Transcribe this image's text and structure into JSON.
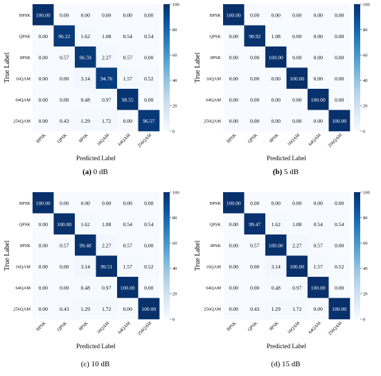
{
  "chart_data": [
    {
      "type": "heatmap",
      "caption_tag": "(a)",
      "caption_text": "0 dB",
      "caption_tag_bold": true,
      "xlabel": "Predicted Label",
      "ylabel": "True Label",
      "categories": [
        "BPSK",
        "QPSK",
        "8PSK",
        "16QAM",
        "64QAM",
        "256QAM"
      ],
      "values": [
        [
          100.0,
          0.0,
          0.0,
          0.0,
          0.0,
          0.0
        ],
        [
          0.0,
          96.22,
          1.62,
          1.08,
          0.54,
          0.54
        ],
        [
          0.0,
          0.57,
          96.59,
          2.27,
          0.57,
          0.0
        ],
        [
          0.0,
          0.0,
          3.14,
          94.76,
          1.57,
          0.52
        ],
        [
          0.0,
          0.0,
          0.48,
          0.97,
          98.55,
          0.0
        ],
        [
          0.0,
          0.43,
          1.29,
          1.72,
          0.0,
          96.57
        ]
      ],
      "colorbar": {
        "min": 0,
        "max": 100,
        "ticks": [
          "0",
          "20",
          "40",
          "60",
          "80",
          "100"
        ]
      }
    },
    {
      "type": "heatmap",
      "caption_tag": "(b)",
      "caption_text": "5 dB",
      "caption_tag_bold": true,
      "xlabel": "Predicted Label",
      "ylabel": "True Label",
      "categories": [
        "BPSK",
        "QPSK",
        "8PSK",
        "16QAM",
        "64QAM",
        "256QAM"
      ],
      "values": [
        [
          100.0,
          0.0,
          0.0,
          0.0,
          0.0,
          0.0
        ],
        [
          0.0,
          98.92,
          1.08,
          0.0,
          0.0,
          0.0
        ],
        [
          0.0,
          0.0,
          100.0,
          0.0,
          0.0,
          0.0
        ],
        [
          0.0,
          0.0,
          0.0,
          100.0,
          0.0,
          0.0
        ],
        [
          0.0,
          0.0,
          0.0,
          0.0,
          100.0,
          0.0
        ],
        [
          0.0,
          0.0,
          0.0,
          0.0,
          0.0,
          100.0
        ]
      ],
      "colorbar": {
        "min": 0,
        "max": 100,
        "ticks": [
          "0",
          "20",
          "40",
          "60",
          "80",
          "100"
        ]
      }
    },
    {
      "type": "heatmap",
      "caption_tag": "(c)",
      "caption_text": "10 dB",
      "caption_tag_bold": false,
      "xlabel": "Predicted Label",
      "ylabel": "True Label",
      "categories": [
        "BPSK",
        "QPSK",
        "8PSK",
        "16QAM",
        "64QAM",
        "256QAM"
      ],
      "values": [
        [
          100.0,
          0.0,
          0.0,
          0.0,
          0.0,
          0.0
        ],
        [
          0.0,
          100.0,
          1.62,
          1.08,
          0.54,
          0.54
        ],
        [
          0.0,
          0.57,
          99.48,
          2.27,
          0.57,
          0.0
        ],
        [
          0.0,
          0.0,
          3.14,
          99.51,
          1.57,
          0.52
        ],
        [
          0.0,
          0.0,
          0.48,
          0.97,
          100.0,
          0.0
        ],
        [
          0.0,
          0.43,
          1.29,
          1.72,
          0.0,
          100.0
        ]
      ],
      "colorbar": {
        "min": 0,
        "max": 100,
        "ticks": [
          "0",
          "20",
          "40",
          "60",
          "80",
          "100"
        ]
      }
    },
    {
      "type": "heatmap",
      "caption_tag": "(d)",
      "caption_text": "15 dB",
      "caption_tag_bold": false,
      "xlabel": "Predicted Label",
      "ylabel": "True Label",
      "categories": [
        "BPSK",
        "QPSK",
        "8PSK",
        "16QAM",
        "64QAM",
        "256QAM"
      ],
      "values": [
        [
          100.0,
          0.0,
          0.0,
          0.0,
          0.0,
          0.0
        ],
        [
          0.0,
          99.47,
          1.62,
          1.08,
          0.54,
          0.54
        ],
        [
          0.0,
          0.57,
          100.0,
          2.27,
          0.57,
          0.0
        ],
        [
          0.0,
          0.0,
          3.14,
          100.0,
          1.57,
          0.52
        ],
        [
          0.0,
          0.0,
          0.48,
          0.97,
          100.0,
          0.0
        ],
        [
          0.0,
          0.43,
          1.29,
          1.72,
          0.0,
          100.0
        ]
      ],
      "colorbar": {
        "min": 0,
        "max": 100,
        "ticks": [
          "0",
          "20",
          "40",
          "60",
          "80",
          "100"
        ]
      }
    }
  ]
}
